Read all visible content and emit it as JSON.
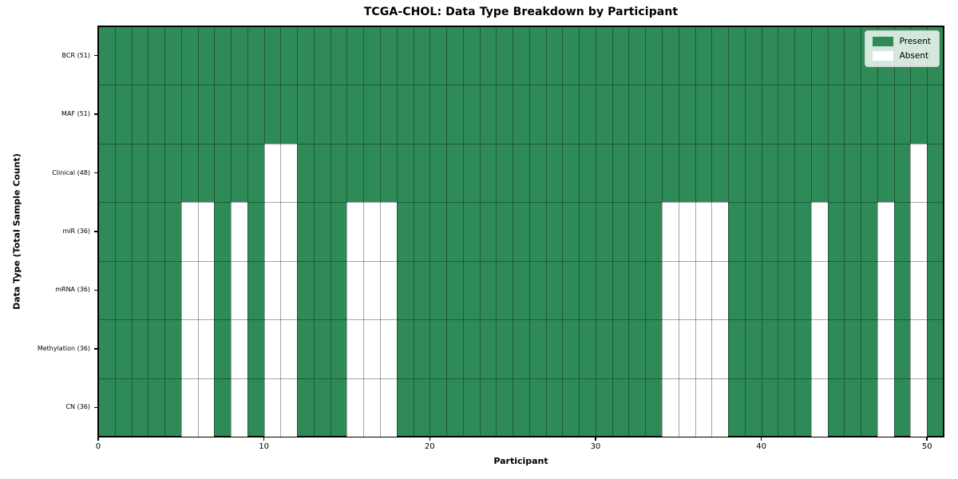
{
  "chart_data": {
    "type": "heatmap",
    "title": "TCGA-CHOL: Data Type Breakdown by Participant",
    "xlabel": "Participant",
    "ylabel": "Data Type (Total Sample Count)",
    "n_participants": 51,
    "x_range": [
      0,
      51
    ],
    "x_ticks": [
      0,
      10,
      20,
      30,
      40,
      50
    ],
    "grid": true,
    "colors": {
      "present": "#2e8b57",
      "absent": "#ffffff",
      "grid": "rgba(0,0,0,0.35)",
      "spine": "#000000"
    },
    "legend": {
      "position": "upper-right",
      "entries": [
        {
          "label": "Present",
          "color": "#2e8b57"
        },
        {
          "label": "Absent",
          "color": "#ffffff"
        }
      ]
    },
    "rows": [
      {
        "name": "BCR",
        "label": "BCR (51)",
        "total": 51,
        "absent_participants": []
      },
      {
        "name": "MAF",
        "label": "MAF (51)",
        "total": 51,
        "absent_participants": []
      },
      {
        "name": "Clinical",
        "label": "Clinical (48)",
        "total": 48,
        "absent_participants": [
          10,
          11,
          49
        ]
      },
      {
        "name": "miR",
        "label": "miR (36)",
        "total": 36,
        "absent_participants": [
          5,
          6,
          8,
          10,
          11,
          15,
          16,
          17,
          34,
          35,
          36,
          37,
          43,
          47,
          49
        ]
      },
      {
        "name": "mRNA",
        "label": "mRNA (36)",
        "total": 36,
        "absent_participants": [
          5,
          6,
          8,
          10,
          11,
          15,
          16,
          17,
          34,
          35,
          36,
          37,
          43,
          47,
          49
        ]
      },
      {
        "name": "Methylation",
        "label": "Methylation (36)",
        "total": 36,
        "absent_participants": [
          5,
          6,
          8,
          10,
          11,
          15,
          16,
          17,
          34,
          35,
          36,
          37,
          43,
          47,
          49
        ]
      },
      {
        "name": "CN",
        "label": "CN (36)",
        "total": 36,
        "absent_participants": [
          5,
          6,
          8,
          10,
          11,
          15,
          16,
          17,
          34,
          35,
          36,
          37,
          43,
          47,
          49
        ]
      }
    ]
  }
}
